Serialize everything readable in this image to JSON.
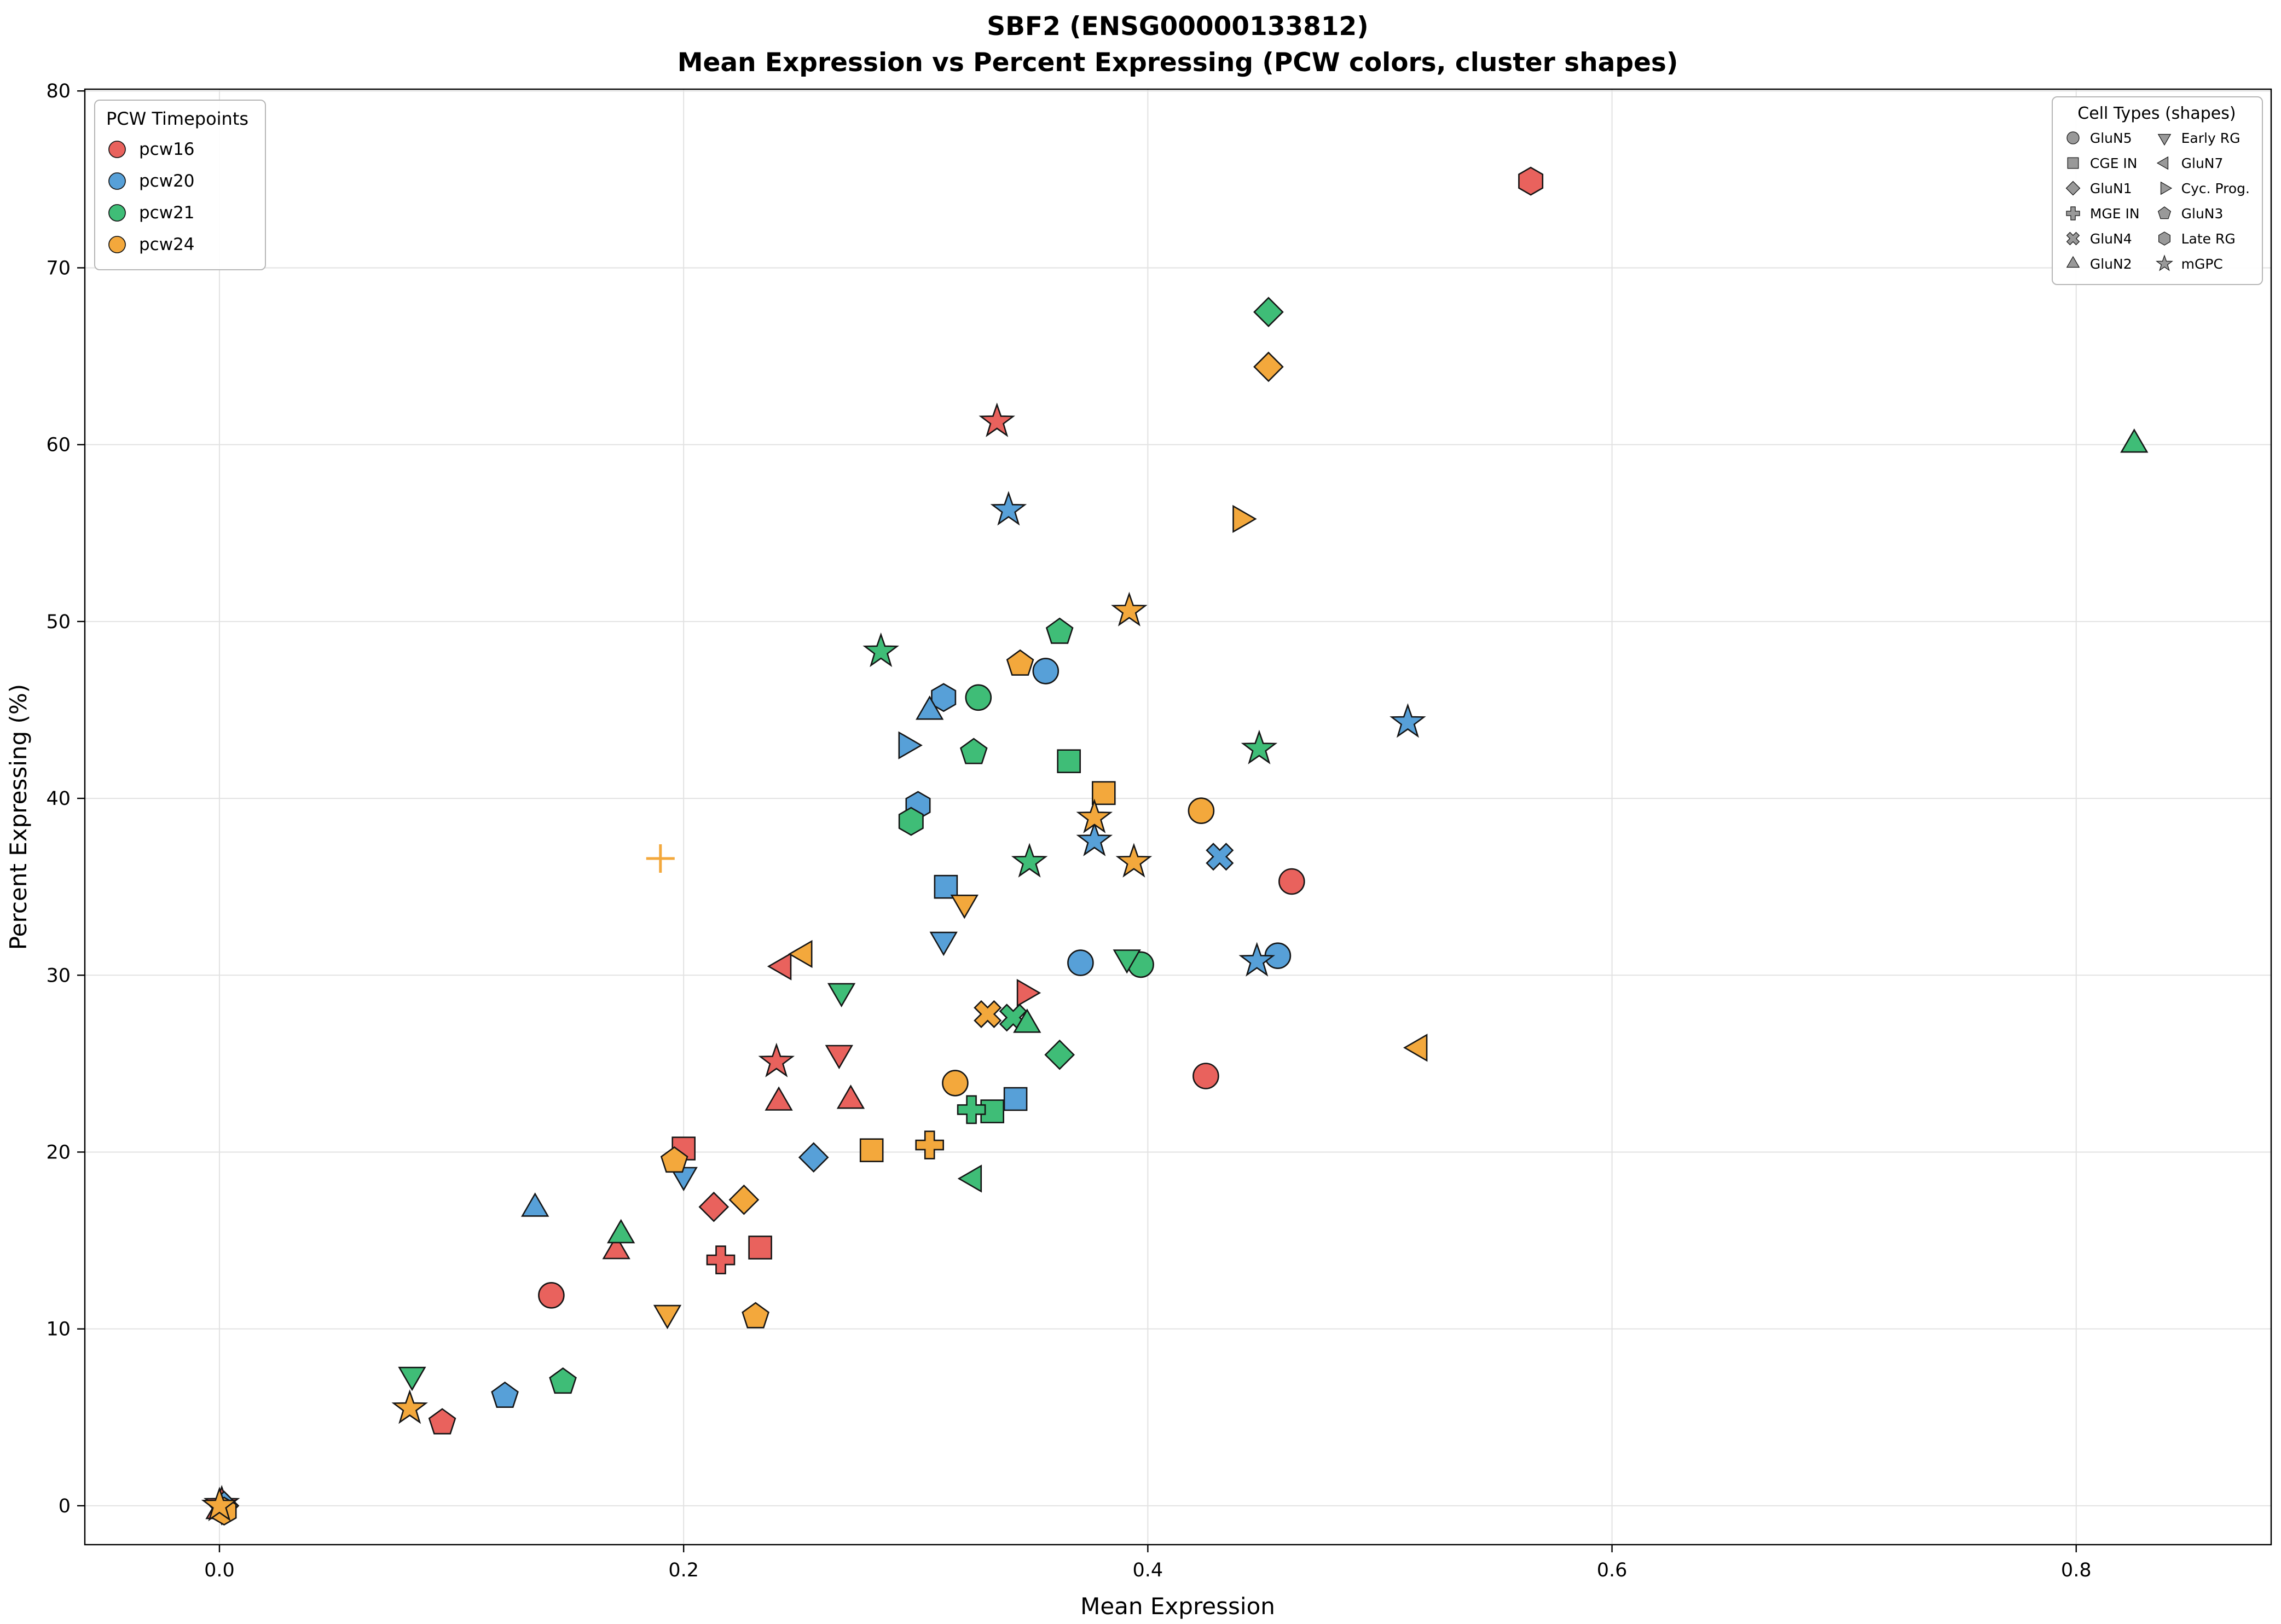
{
  "title": "SBF2 (ENSG00000133812)",
  "subtitle": "Mean Expression vs Percent Expressing (PCW colors, cluster shapes)",
  "xlabel": "Mean Expression",
  "ylabel": "Percent Expressing (%)",
  "legend_pcw": {
    "title": "PCW Timepoints",
    "items": [
      {
        "label": "pcw16",
        "color": "#E9625D"
      },
      {
        "label": "pcw20",
        "color": "#57A0D8"
      },
      {
        "label": "pcw21",
        "color": "#3FBD77"
      },
      {
        "label": "pcw24",
        "color": "#F3A83C"
      }
    ]
  },
  "legend_shapes": {
    "title": "Cell Types (shapes)",
    "marker_color": "#999999",
    "items": [
      {
        "label": "GluN5",
        "shape": "circle"
      },
      {
        "label": "CGE IN",
        "shape": "square"
      },
      {
        "label": "GluN1",
        "shape": "diamond"
      },
      {
        "label": "MGE IN",
        "shape": "plus"
      },
      {
        "label": "GluN4",
        "shape": "x"
      },
      {
        "label": "GluN2",
        "shape": "triangle-up"
      },
      {
        "label": "Early RG",
        "shape": "triangle-down"
      },
      {
        "label": "GluN7",
        "shape": "triangle-left"
      },
      {
        "label": "Cyc. Prog.",
        "shape": "triangle-right"
      },
      {
        "label": "GluN3",
        "shape": "pentagon"
      },
      {
        "label": "Late RG",
        "shape": "hexagon"
      },
      {
        "label": "mGPC",
        "shape": "star"
      }
    ]
  },
  "chart_data": {
    "type": "scatter",
    "title": "SBF2 (ENSG00000133812)",
    "subtitle": "Mean Expression vs Percent Expressing (PCW colors, cluster shapes)",
    "xlabel": "Mean Expression",
    "ylabel": "Percent Expressing (%)",
    "xlim": [
      -0.058,
      0.884
    ],
    "ylim": [
      -2.2,
      80.1
    ],
    "xticks": [
      0.0,
      0.2,
      0.4,
      0.6,
      0.8
    ],
    "xtick_labels": [
      "0.0",
      "0.2",
      "0.4",
      "0.6",
      "0.8"
    ],
    "yticks": [
      0,
      10,
      20,
      30,
      40,
      50,
      60,
      70,
      80
    ],
    "ytick_labels": [
      "0",
      "10",
      "20",
      "30",
      "40",
      "50",
      "60",
      "70",
      "80"
    ],
    "grid": true,
    "grid_color": "#e2e2e2",
    "edge_color": "#151515",
    "legend_position": {
      "pcw": "upper left",
      "shapes": "upper right"
    },
    "series": [
      {
        "name": "pcw16",
        "color": "#E9625D",
        "points": [
          {
            "shape": "hexagon",
            "x": 0.565,
            "y": 74.9
          },
          {
            "shape": "star",
            "x": 0.335,
            "y": 61.3
          },
          {
            "shape": "circle",
            "x": 0.462,
            "y": 35.3
          },
          {
            "shape": "circle",
            "x": 0.425,
            "y": 24.3
          },
          {
            "shape": "triangle-right",
            "x": 0.347,
            "y": 29.0
          },
          {
            "shape": "triangle-down",
            "x": 0.267,
            "y": 25.6
          },
          {
            "shape": "star",
            "x": 0.24,
            "y": 25.1
          },
          {
            "shape": "triangle-up",
            "x": 0.241,
            "y": 22.8
          },
          {
            "shape": "triangle-up",
            "x": 0.272,
            "y": 22.9
          },
          {
            "shape": "triangle-left",
            "x": 0.243,
            "y": 30.5
          },
          {
            "shape": "square",
            "x": 0.2,
            "y": 20.2
          },
          {
            "shape": "diamond",
            "x": 0.213,
            "y": 16.9
          },
          {
            "shape": "plus",
            "x": 0.216,
            "y": 13.9
          },
          {
            "shape": "square",
            "x": 0.233,
            "y": 14.6
          },
          {
            "shape": "triangle-up",
            "x": 0.171,
            "y": 14.4
          },
          {
            "shape": "circle",
            "x": 0.143,
            "y": 11.9
          },
          {
            "shape": "pentagon",
            "x": 0.096,
            "y": 4.7
          },
          {
            "shape": "star",
            "x": 0.001,
            "y": 0.1
          },
          {
            "shape": "triangle-up",
            "x": 0.0,
            "y": -0.3
          }
        ]
      },
      {
        "name": "pcw20",
        "color": "#57A0D8",
        "points": [
          {
            "shape": "star",
            "x": 0.34,
            "y": 56.3
          },
          {
            "shape": "star",
            "x": 0.512,
            "y": 44.3
          },
          {
            "shape": "circle",
            "x": 0.356,
            "y": 47.2
          },
          {
            "shape": "hexagon",
            "x": 0.312,
            "y": 45.7
          },
          {
            "shape": "triangle-up",
            "x": 0.306,
            "y": 44.9
          },
          {
            "shape": "triangle-right",
            "x": 0.296,
            "y": 43.0
          },
          {
            "shape": "hexagon",
            "x": 0.301,
            "y": 39.6
          },
          {
            "shape": "square",
            "x": 0.313,
            "y": 35.0
          },
          {
            "shape": "triangle-down",
            "x": 0.312,
            "y": 32.0
          },
          {
            "shape": "star",
            "x": 0.377,
            "y": 37.6
          },
          {
            "shape": "x",
            "x": 0.431,
            "y": 36.7
          },
          {
            "shape": "circle",
            "x": 0.371,
            "y": 30.7
          },
          {
            "shape": "circle",
            "x": 0.456,
            "y": 31.1
          },
          {
            "shape": "star",
            "x": 0.447,
            "y": 30.8
          },
          {
            "shape": "diamond",
            "x": 0.256,
            "y": 19.7
          },
          {
            "shape": "triangle-down",
            "x": 0.2,
            "y": 18.7
          },
          {
            "shape": "triangle-up",
            "x": 0.136,
            "y": 16.8
          },
          {
            "shape": "square",
            "x": 0.343,
            "y": 23.0
          },
          {
            "shape": "pentagon",
            "x": 0.123,
            "y": 6.2
          },
          {
            "shape": "diamond",
            "x": 0.002,
            "y": 0.0
          }
        ]
      },
      {
        "name": "pcw21",
        "color": "#3FBD77",
        "points": [
          {
            "shape": "triangle-up",
            "x": 0.825,
            "y": 60.0
          },
          {
            "shape": "diamond",
            "x": 0.452,
            "y": 67.5
          },
          {
            "shape": "star",
            "x": 0.285,
            "y": 48.3
          },
          {
            "shape": "pentagon",
            "x": 0.362,
            "y": 49.4
          },
          {
            "shape": "circle",
            "x": 0.327,
            "y": 45.7
          },
          {
            "shape": "pentagon",
            "x": 0.325,
            "y": 42.6
          },
          {
            "shape": "square",
            "x": 0.366,
            "y": 42.1
          },
          {
            "shape": "hexagon",
            "x": 0.298,
            "y": 38.7
          },
          {
            "shape": "star",
            "x": 0.448,
            "y": 42.8
          },
          {
            "shape": "star",
            "x": 0.349,
            "y": 36.4
          },
          {
            "shape": "circle",
            "x": 0.397,
            "y": 30.6
          },
          {
            "shape": "triangle-down",
            "x": 0.391,
            "y": 31.0
          },
          {
            "shape": "x",
            "x": 0.342,
            "y": 27.6
          },
          {
            "shape": "triangle-up",
            "x": 0.348,
            "y": 27.2
          },
          {
            "shape": "diamond",
            "x": 0.362,
            "y": 25.5
          },
          {
            "shape": "triangle-down",
            "x": 0.268,
            "y": 29.1
          },
          {
            "shape": "triangle-left",
            "x": 0.325,
            "y": 18.5
          },
          {
            "shape": "square",
            "x": 0.333,
            "y": 22.3
          },
          {
            "shape": "plus",
            "x": 0.324,
            "y": 22.4
          },
          {
            "shape": "triangle-up",
            "x": 0.173,
            "y": 15.3
          },
          {
            "shape": "pentagon",
            "x": 0.148,
            "y": 7.0
          },
          {
            "shape": "triangle-down",
            "x": 0.083,
            "y": 7.4
          },
          {
            "shape": "triangle-down",
            "x": 0.001,
            "y": -0.2
          }
        ]
      },
      {
        "name": "pcw24",
        "color": "#F3A83C",
        "points": [
          {
            "shape": "diamond",
            "x": 0.452,
            "y": 64.4
          },
          {
            "shape": "triangle-right",
            "x": 0.44,
            "y": 55.8
          },
          {
            "shape": "star",
            "x": 0.392,
            "y": 50.6
          },
          {
            "shape": "pentagon",
            "x": 0.345,
            "y": 47.6
          },
          {
            "shape": "square",
            "x": 0.381,
            "y": 40.3
          },
          {
            "shape": "star",
            "x": 0.377,
            "y": 38.9
          },
          {
            "shape": "circle",
            "x": 0.423,
            "y": 39.3
          },
          {
            "shape": "star",
            "x": 0.394,
            "y": 36.4
          },
          {
            "shape": "triangle-down",
            "x": 0.321,
            "y": 34.1
          },
          {
            "shape": "plus-thin",
            "x": 0.19,
            "y": 36.6
          },
          {
            "shape": "triangle-left",
            "x": 0.517,
            "y": 25.9
          },
          {
            "shape": "circle",
            "x": 0.317,
            "y": 23.9
          },
          {
            "shape": "x",
            "x": 0.331,
            "y": 27.8
          },
          {
            "shape": "square",
            "x": 0.281,
            "y": 20.1
          },
          {
            "shape": "plus",
            "x": 0.306,
            "y": 20.4
          },
          {
            "shape": "triangle-left",
            "x": 0.252,
            "y": 31.2
          },
          {
            "shape": "pentagon",
            "x": 0.196,
            "y": 19.5
          },
          {
            "shape": "diamond",
            "x": 0.226,
            "y": 17.3
          },
          {
            "shape": "triangle-down",
            "x": 0.193,
            "y": 10.9
          },
          {
            "shape": "pentagon",
            "x": 0.231,
            "y": 10.7
          },
          {
            "shape": "star",
            "x": 0.082,
            "y": 5.5
          },
          {
            "shape": "hexagon",
            "x": 0.002,
            "y": -0.3
          },
          {
            "shape": "star",
            "x": 0.0,
            "y": 0.0
          }
        ]
      }
    ]
  }
}
